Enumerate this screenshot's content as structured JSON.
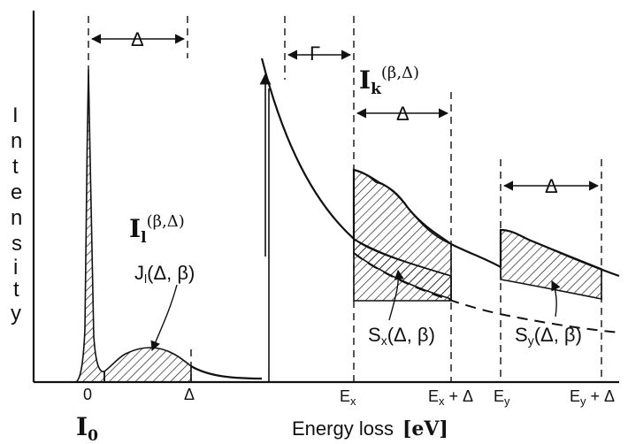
{
  "axes": {
    "y_label_letters": [
      "I",
      "n",
      "t",
      "e",
      "n",
      "s",
      "i",
      "t",
      "y"
    ],
    "x_label_text": "Energy loss",
    "x_label_unit": "[eV]"
  },
  "ticks": {
    "zero": "0",
    "delta": "Δ",
    "ex": {
      "base": "E",
      "sub": "x"
    },
    "ex_plus": {
      "base": "E",
      "sub": "x",
      "suffix": " + Δ"
    },
    "ey": {
      "base": "E",
      "sub": "y"
    },
    "ey_plus": {
      "base": "E",
      "sub": "y",
      "suffix": " + Δ"
    }
  },
  "labels": {
    "i0": {
      "base": "I",
      "sub": "0"
    },
    "il": {
      "base": "I",
      "sub": "l",
      "sup": "(β,Δ)"
    },
    "ik": {
      "base": "I",
      "sub": "k",
      "sup": "(β,Δ)"
    },
    "jl": {
      "base": "J",
      "sub": "l",
      "args": "(Δ, β)"
    },
    "sx": {
      "base": "S",
      "sub": "x",
      "args": "(Δ, β)"
    },
    "sy": {
      "base": "S",
      "sub": "y",
      "args": "(Δ, β)"
    }
  },
  "markers": {
    "delta_zero_loss": "Δ",
    "gamma": "Γ",
    "delta_x": "Δ",
    "delta_y": "Δ"
  }
}
